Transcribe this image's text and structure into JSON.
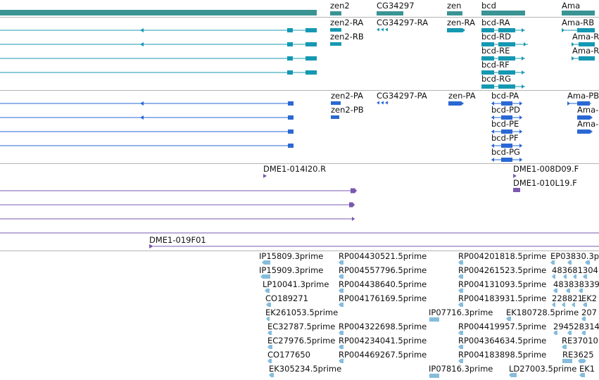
{
  "colors": {
    "gene": "#3a9494",
    "rna": "#1598b2",
    "protein": "#2a68d4",
    "clone": "#7a58b0",
    "est": "#86bcdc",
    "separator": "#b4b4b4"
  },
  "gene_track": {
    "labels": [
      "zen2",
      "CG34297",
      "zen",
      "bcd",
      "Ama"
    ]
  },
  "rna_track": {
    "labels": [
      "zen2-RA",
      "zen2-RB",
      "CG34297-RA",
      "zen-RA",
      "bcd-RA",
      "bcd-RD",
      "bcd-RE",
      "bcd-RF",
      "bcd-RG",
      "Ama-RB",
      "Ama-R",
      "Ama-R"
    ]
  },
  "protein_track": {
    "labels": [
      "zen2-PA",
      "zen2-PB",
      "CG34297-PA",
      "zen-PA",
      "bcd-PA",
      "bcd-PD",
      "bcd-PE",
      "bcd-PF",
      "bcd-PG",
      "Ama-PB",
      "Ama-",
      "Ama-"
    ]
  },
  "clone_track": {
    "labels": [
      "DME1-014I20.R",
      "DME1-008D09.F",
      "DME1-010L19.F"
    ]
  },
  "bac_track": {
    "labels": [
      "DME1-019F01"
    ]
  },
  "est_track": {
    "col1": [
      "IP15809.3prime",
      "IP15909.3prime",
      "LP10041.3prime",
      "CO189271",
      "EK261053.5prime",
      "EC32787.5prime",
      "EC27976.5prime",
      "CO177650",
      "EK305234.5prime"
    ],
    "col2": [
      "RP004430521.5prime",
      "RP004557796.5prime",
      "RP004438640.5prime",
      "RP004176169.5prime",
      "RP004322698.5prime",
      "RP004234041.5prime",
      "RP004469267.5prime"
    ],
    "col3": [
      "IP07716.3prime",
      "IP07816.3prime"
    ],
    "col4": [
      "RP004201818.5prime",
      "RP004261523.5prime",
      "RP004131093.5prime",
      "RP004183931.5prime",
      "EK180728.5prime",
      "RP004419957.5prime",
      "RP004364634.5prime",
      "RP004183898.5prime",
      "LD27003.5prime"
    ],
    "col5": [
      "EP03830.3p",
      "483681304",
      "483838339",
      "228821",
      "EK2",
      "207",
      "294528314",
      "RE37010",
      "RE3625",
      "EK1"
    ]
  }
}
